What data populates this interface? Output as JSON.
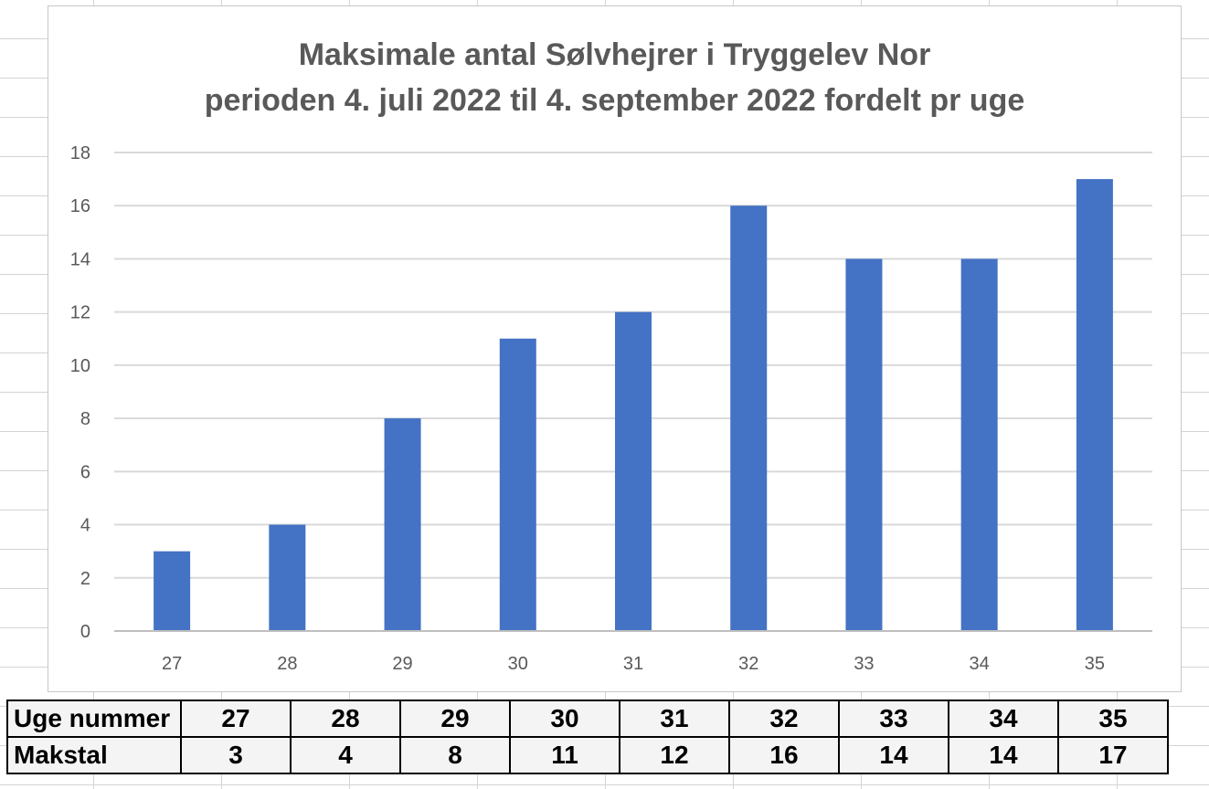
{
  "chart_data": {
    "type": "bar",
    "title_line1": "Maksimale antal Sølvhejrer i Tryggelev Nor",
    "title_line2": "perioden 4. juli 2022 til 4. september 2022 fordelt pr uge",
    "categories": [
      "27",
      "28",
      "29",
      "30",
      "31",
      "32",
      "33",
      "34",
      "35"
    ],
    "values": [
      3,
      4,
      8,
      11,
      12,
      16,
      14,
      14,
      17
    ],
    "ylim": [
      0,
      18
    ],
    "yticks": [
      "0",
      "2",
      "4",
      "6",
      "8",
      "10",
      "12",
      "14",
      "16",
      "18"
    ],
    "xlabel": "",
    "ylabel": "",
    "grid": true,
    "legend": "none",
    "bar_color": "#4472C4",
    "grid_color": "#d9d9d9",
    "axis_color": "#bfbfbf",
    "tick_label_color": "#595959"
  },
  "table": {
    "row1_label": "Uge nummer",
    "row2_label": "Makstal",
    "weeks": [
      "27",
      "28",
      "29",
      "30",
      "31",
      "32",
      "33",
      "34",
      "35"
    ],
    "counts": [
      "3",
      "4",
      "8",
      "11",
      "12",
      "16",
      "14",
      "14",
      "17"
    ]
  }
}
